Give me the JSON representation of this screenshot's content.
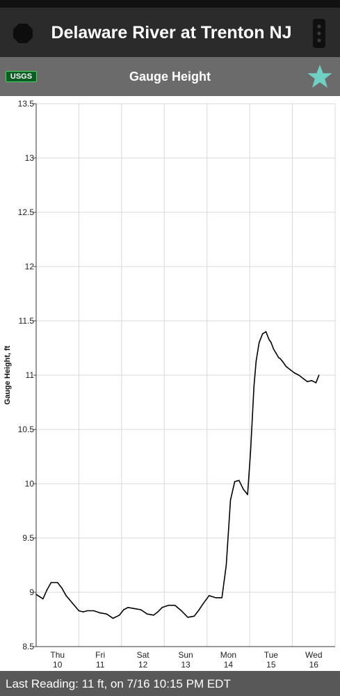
{
  "header": {
    "title": "Delaware River at Trenton NJ",
    "app_icon": "app-logo-icon",
    "menu_icon": "overflow-menu-icon"
  },
  "subheader": {
    "logo_text": "USGS",
    "title": "Gauge Height",
    "favorite_icon": "star-icon",
    "favorite_color": "#6fd0c4"
  },
  "footer": {
    "last_reading": "Last Reading: 11 ft, on 7/16 10:15 PM EDT"
  },
  "chart_data": {
    "type": "line",
    "ylabel": "Gauge Height, ft",
    "ylim": [
      8.5,
      13.5
    ],
    "yticks": [
      "13.5",
      "13",
      "12.5",
      "12",
      "11.5",
      "11",
      "10.5",
      "10",
      "9.5",
      "9",
      "8.5"
    ],
    "xlim": [
      0,
      7
    ],
    "xticks": [
      {
        "day": "Thu",
        "date": "10"
      },
      {
        "day": "Fri",
        "date": "11"
      },
      {
        "day": "Sat",
        "date": "12"
      },
      {
        "day": "Sun",
        "date": "13"
      },
      {
        "day": "Mon",
        "date": "14"
      },
      {
        "day": "Tue",
        "date": "15"
      },
      {
        "day": "Wed",
        "date": "16"
      }
    ],
    "grid": true,
    "series": [
      {
        "line_color": "#000000",
        "x": [
          0.0,
          0.08,
          0.16,
          0.25,
          0.35,
          0.5,
          0.6,
          0.7,
          0.85,
          1.0,
          1.1,
          1.2,
          1.35,
          1.5,
          1.65,
          1.8,
          1.95,
          2.05,
          2.15,
          2.3,
          2.45,
          2.6,
          2.75,
          2.85,
          2.95,
          3.1,
          3.25,
          3.4,
          3.55,
          3.7,
          3.8,
          3.9,
          4.05,
          4.2,
          4.35,
          4.45,
          4.55,
          4.65,
          4.75,
          4.85,
          4.95,
          5.02,
          5.1,
          5.15,
          5.22,
          5.3,
          5.38,
          5.45,
          5.5,
          5.56,
          5.62,
          5.68,
          5.72,
          5.78,
          5.85,
          5.95,
          6.05,
          6.15,
          6.25,
          6.35,
          6.45,
          6.55,
          6.62
        ],
        "y": [
          8.98,
          8.96,
          8.94,
          9.02,
          9.09,
          9.09,
          9.04,
          8.97,
          8.9,
          8.83,
          8.82,
          8.83,
          8.83,
          8.81,
          8.8,
          8.76,
          8.79,
          8.84,
          8.86,
          8.85,
          8.84,
          8.8,
          8.79,
          8.82,
          8.86,
          8.88,
          8.88,
          8.83,
          8.77,
          8.78,
          8.83,
          8.89,
          8.97,
          8.95,
          8.95,
          9.25,
          9.85,
          10.02,
          10.03,
          9.95,
          9.9,
          10.3,
          10.9,
          11.13,
          11.3,
          11.38,
          11.4,
          11.33,
          11.3,
          11.24,
          11.2,
          11.16,
          11.15,
          11.12,
          11.08,
          11.05,
          11.02,
          11.0,
          10.97,
          10.94,
          10.95,
          10.93,
          11.0
        ]
      }
    ]
  }
}
